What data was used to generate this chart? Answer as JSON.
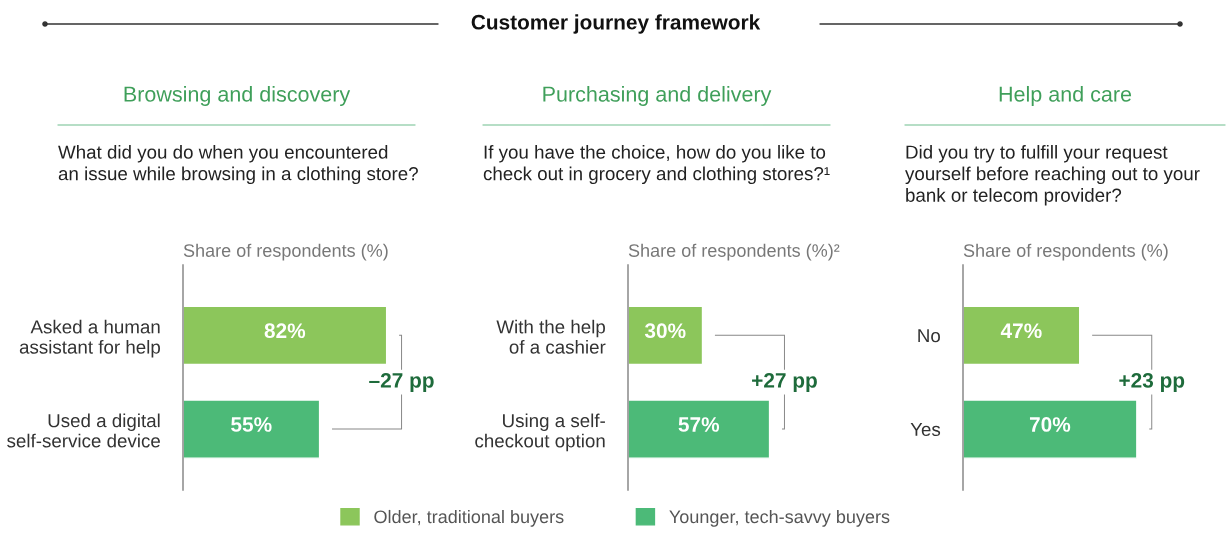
{
  "chart_data": [
    {
      "type": "bar",
      "orientation": "horizontal",
      "title": "Browsing and discovery",
      "subtitle": "What did you do when you encountered\nan issue while browsing in a clothing store?",
      "xlabel": "Share of respondents (%)",
      "categories": [
        "Asked a human\nassistant for help",
        "Used a digital\nself-service device"
      ],
      "series": [
        {
          "name": "Older, traditional buyers",
          "color": "#8cc65b",
          "values": [
            82,
            null
          ],
          "value_labels": [
            "82%",
            null
          ]
        },
        {
          "name": "Younger, tech-savvy buyers",
          "color": "#4cba78",
          "values": [
            null,
            55
          ],
          "value_labels": [
            null,
            "55%"
          ]
        }
      ],
      "tick_labels": "y",
      "legend": "bottom",
      "annotations": [
        "Customer journey framework",
        "–27 pp"
      ]
    },
    {
      "type": "bar",
      "orientation": "horizontal",
      "title": "Purchasing and delivery",
      "subtitle": "If you have the choice, how do you like to\ncheck out in grocery and clothing stores?¹",
      "xlabel": "Share of respondents (%)²",
      "categories": [
        "With the help\nof a cashier",
        "Using a self-\ncheckout option"
      ],
      "series": [
        {
          "color": "#8cc65b",
          "values": [
            30,
            null
          ],
          "value_labels": [
            "30%",
            null
          ]
        },
        {
          "color": "#4cba78",
          "values": [
            null,
            57
          ],
          "value_labels": [
            null,
            "57%"
          ]
        }
      ],
      "tick_labels": "y",
      "annotations": [
        "+27 pp"
      ]
    },
    {
      "type": "bar",
      "orientation": "horizontal",
      "title": "Help and care",
      "subtitle": "Did you try to fulfill your request\nyourself before reaching out to your\nbank or telecom provider?",
      "xlabel": "Share of respondents (%)",
      "categories": [
        "No",
        "Yes"
      ],
      "series": [
        {
          "color": "#8cc65b",
          "values": [
            47,
            null
          ],
          "value_labels": [
            "47%",
            null
          ]
        },
        {
          "color": "#4cba78",
          "values": [
            null,
            70
          ],
          "value_labels": [
            null,
            "70%"
          ]
        }
      ],
      "tick_labels": "y",
      "annotations": [
        "+23 pp"
      ]
    }
  ]
}
